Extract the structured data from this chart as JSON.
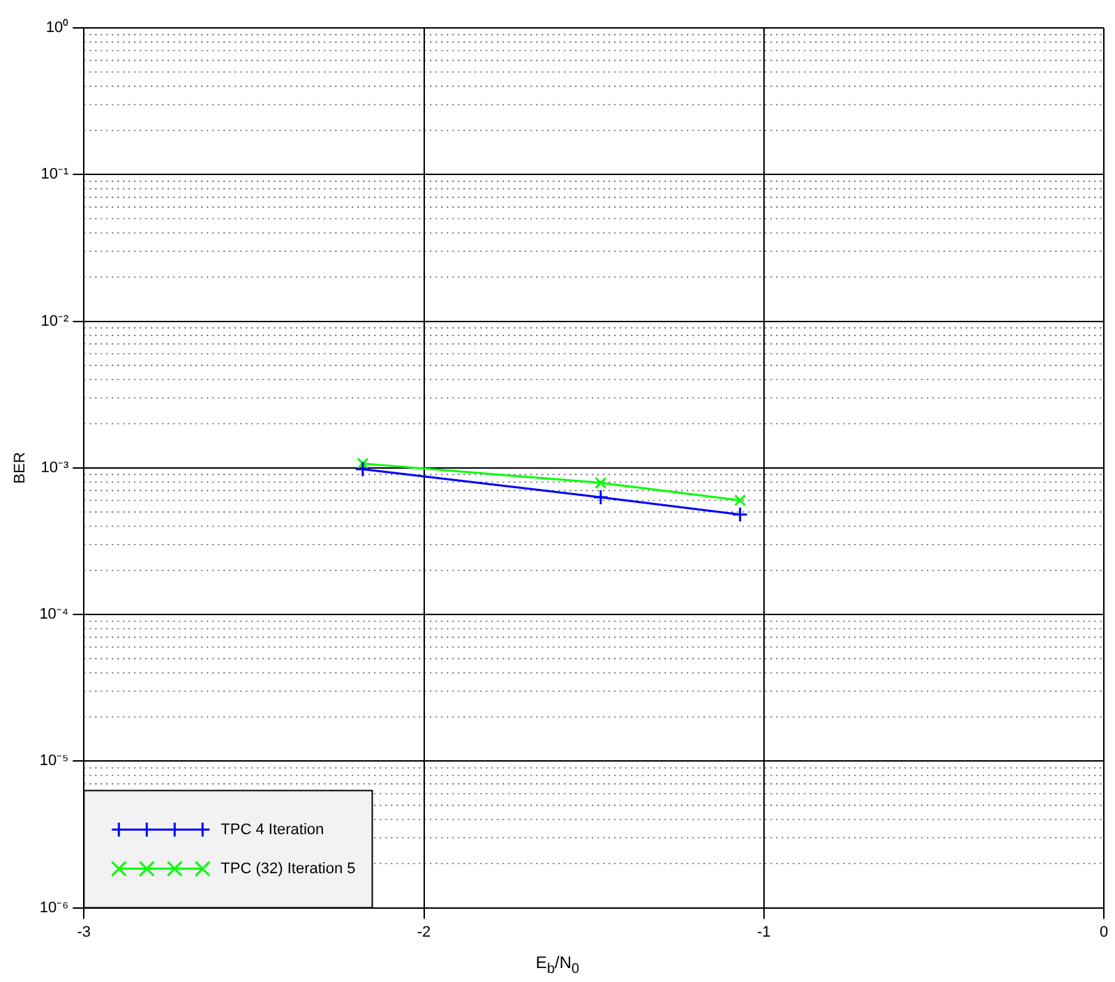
{
  "chart_data": {
    "type": "line",
    "xlabel": "E$_{b}$/N$_{0}$",
    "ylabel": "BER",
    "log": "y",
    "xlim": [
      -3,
      0
    ],
    "xticks": [
      -3,
      -2,
      -1,
      0
    ],
    "ylim": [
      1e-06,
      1
    ],
    "yticks": [
      {
        "value": 1,
        "label": "10⁰"
      },
      {
        "value": 0.1,
        "label": "10⁻¹"
      },
      {
        "value": 0.01,
        "label": "10⁻²"
      },
      {
        "value": 0.001,
        "label": "10⁻³"
      },
      {
        "value": 0.0001,
        "label": "10⁻⁴"
      },
      {
        "value": 1e-05,
        "label": "10⁻⁵"
      },
      {
        "value": 1e-06,
        "label": "10⁻⁶"
      }
    ],
    "grid": true,
    "legend": "bottom left",
    "line_style": "solid",
    "series": [
      {
        "name": "TPC 4 Iteration",
        "color": "#0000ff",
        "marker": "cross",
        "x": [
          -2.18,
          -1.48,
          -1.07
        ],
        "values": [
          0.00098,
          0.00063,
          0.00048
        ]
      },
      {
        "name": "TPC (32) Iteration 5",
        "color": "#00ff00",
        "marker": "x",
        "x": [
          -2.18,
          -1.48,
          -1.07
        ],
        "values": [
          0.00107,
          0.00079,
          0.0006
        ]
      }
    ]
  }
}
